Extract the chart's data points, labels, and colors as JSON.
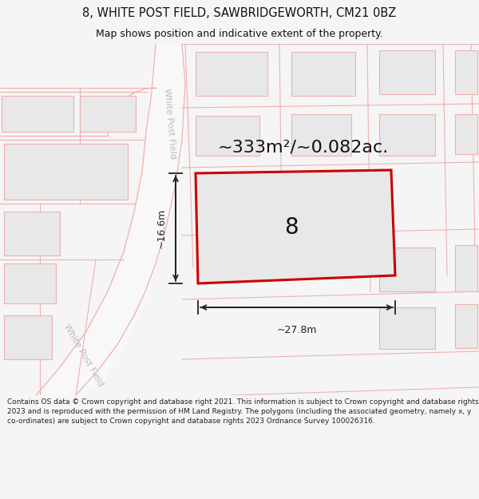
{
  "title": "8, WHITE POST FIELD, SAWBRIDGEWORTH, CM21 0BZ",
  "subtitle": "Map shows position and indicative extent of the property.",
  "area_text": "~333m²/~0.082ac.",
  "plot_number": "8",
  "dim_width": "~27.8m",
  "dim_height": "~16.6m",
  "footer": "Contains OS data © Crown copyright and database right 2021. This information is subject to Crown copyright and database rights 2023 and is reproduced with the permission of HM Land Registry. The polygons (including the associated geometry, namely x, y co-ordinates) are subject to Crown copyright and database rights 2023 Ordnance Survey 100026316.",
  "bg_color": "#f5f5f5",
  "map_bg": "#ffffff",
  "building_fill": "#e8e8e8",
  "building_stroke": "#f0b0b0",
  "plot_stroke": "#cc0000",
  "plot_fill": "#e8e8e8",
  "road_fill": "#f0f0f0",
  "street_label_color": "#bbbbbb",
  "grid_line_color": "#f0b0b0",
  "title_color": "#111111",
  "footer_color": "#222222",
  "dim_color": "#222222",
  "title_fontsize": 10.5,
  "subtitle_fontsize": 9,
  "area_fontsize": 16,
  "plot_num_fontsize": 20,
  "dim_fontsize": 9,
  "street_fontsize": 8,
  "footer_fontsize": 6.5
}
